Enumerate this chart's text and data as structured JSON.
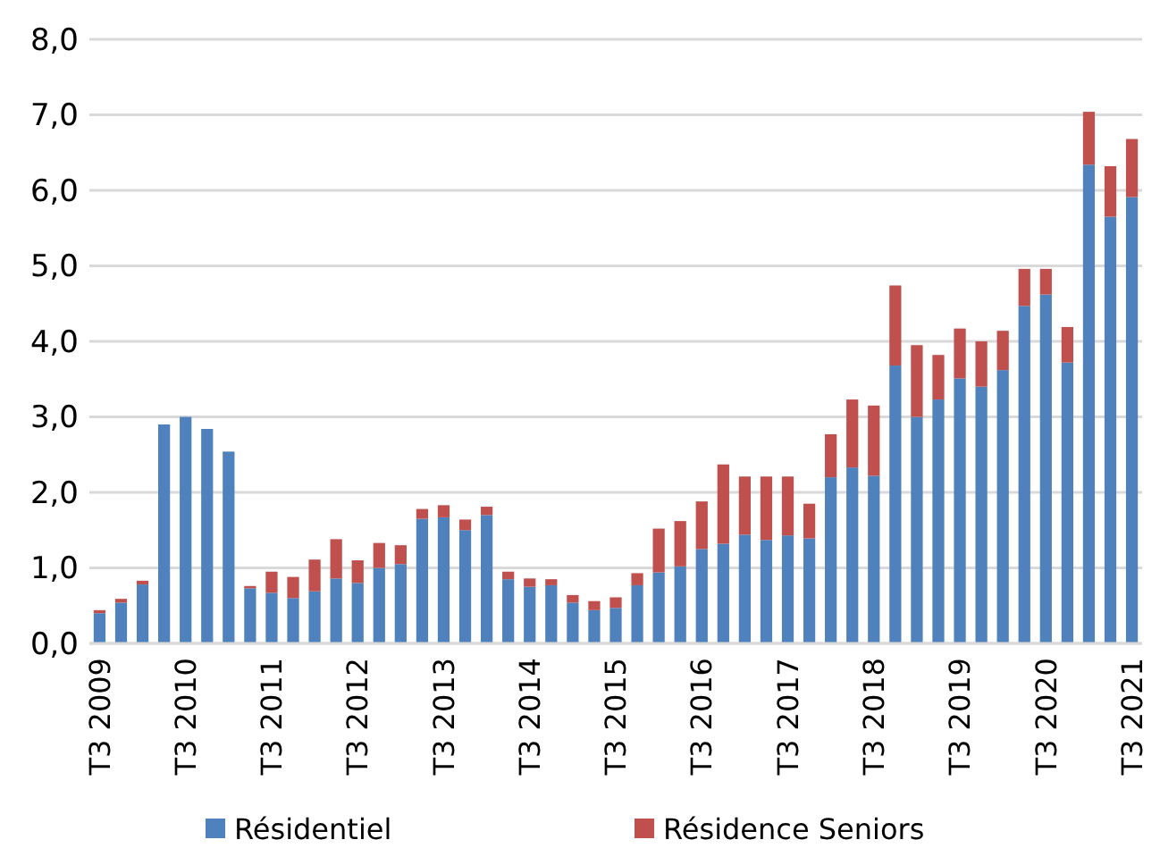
{
  "chart_data": {
    "type": "bar",
    "stacked": true,
    "categories": [
      "T3 2009",
      null,
      null,
      null,
      "T3 2010",
      null,
      null,
      null,
      "T3 2011",
      null,
      null,
      null,
      "T3 2012",
      null,
      null,
      null,
      "T3 2013",
      null,
      null,
      null,
      "T3 2014",
      null,
      null,
      null,
      "T3 2015",
      null,
      null,
      null,
      "T3 2016",
      null,
      null,
      null,
      "T3 2017",
      null,
      null,
      null,
      "T3 2018",
      null,
      null,
      null,
      "T3 2019",
      null,
      null,
      null,
      "T3 2020",
      null,
      null,
      null,
      "T3 2021"
    ],
    "series": [
      {
        "name": "Résidentiel",
        "color": "#4f81bd",
        "values": [
          0.4,
          0.54,
          0.78,
          2.9,
          3.0,
          2.84,
          2.54,
          0.73,
          0.67,
          0.6,
          0.69,
          0.86,
          0.8,
          1.0,
          1.05,
          1.65,
          1.67,
          1.5,
          1.7,
          0.85,
          0.75,
          0.77,
          0.54,
          0.44,
          0.47,
          0.77,
          0.94,
          1.02,
          1.25,
          1.32,
          1.44,
          1.37,
          1.43,
          1.39,
          2.2,
          2.33,
          2.22,
          3.68,
          3.0,
          3.23,
          3.51,
          3.4,
          3.62,
          4.47,
          4.62,
          3.72,
          6.34,
          5.65,
          5.91
        ]
      },
      {
        "name": "Résidence Seniors",
        "color": "#c0504d",
        "values": [
          0.04,
          0.05,
          0.05,
          0,
          0,
          0,
          0,
          0.03,
          0.28,
          0.28,
          0.42,
          0.52,
          0.3,
          0.33,
          0.25,
          0.13,
          0.16,
          0.14,
          0.11,
          0.1,
          0.11,
          0.08,
          0.1,
          0.12,
          0.14,
          0.16,
          0.58,
          0.6,
          0.63,
          1.05,
          0.77,
          0.84,
          0.78,
          0.46,
          0.57,
          0.9,
          0.93,
          1.06,
          0.95,
          0.59,
          0.66,
          0.6,
          0.52,
          0.49,
          0.34,
          0.47,
          0.7,
          0.67,
          0.77
        ]
      }
    ],
    "ylim": [
      0,
      8
    ],
    "yticks": [
      {
        "value": 0,
        "label": "0,0"
      },
      {
        "value": 1,
        "label": "1,0"
      },
      {
        "value": 2,
        "label": "2,0"
      },
      {
        "value": 3,
        "label": "3,0"
      },
      {
        "value": 4,
        "label": "4,0"
      },
      {
        "value": 5,
        "label": "5,0"
      },
      {
        "value": 6,
        "label": "6,0"
      },
      {
        "value": 7,
        "label": "7,0"
      },
      {
        "value": 8,
        "label": "8,0"
      }
    ],
    "grid": "y",
    "legend": "bottom"
  }
}
